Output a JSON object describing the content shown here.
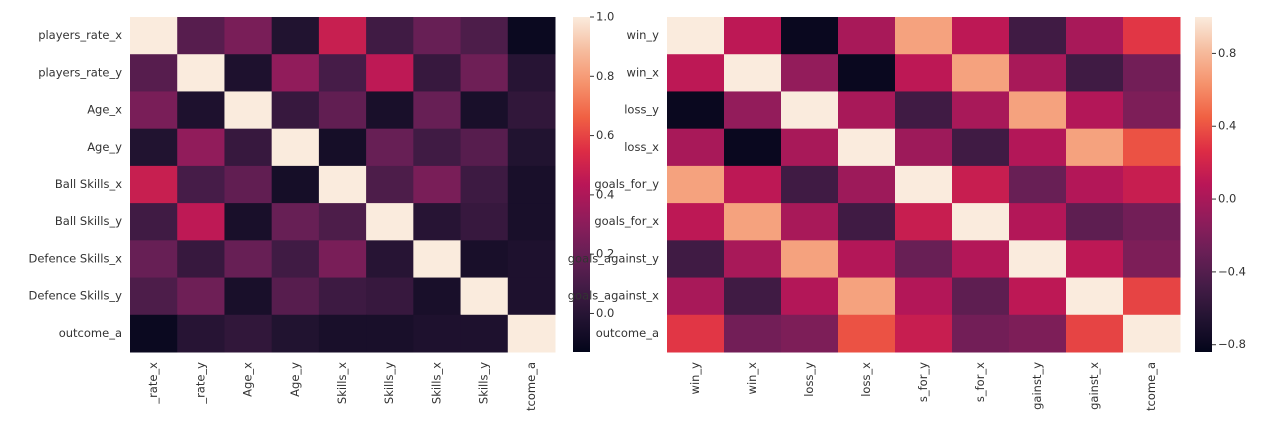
{
  "chart_data": [
    {
      "type": "heatmap",
      "colormap": "rocket",
      "y_categories": [
        "players_rate_x",
        "players_rate_y",
        "Age_x",
        "Age_y",
        "Ball Skills_x",
        "Ball Skills_y",
        "Defence Skills_x",
        "Defence Skills_y",
        "outcome_a"
      ],
      "x_categories": [
        "_rate_x",
        "_rate_y",
        "Age_x",
        "Age_y",
        "Skills_x",
        "Skills_y",
        "Skills_x",
        "Skills_y",
        "tcome_a"
      ],
      "values": [
        [
          1,
          0.15,
          0.25,
          -0.02,
          0.48,
          0.08,
          0.2,
          0.12,
          -0.1
        ],
        [
          0.15,
          1,
          -0.03,
          0.32,
          0.1,
          0.45,
          0.05,
          0.22,
          0.0
        ],
        [
          0.25,
          -0.03,
          1,
          0.05,
          0.18,
          -0.05,
          0.2,
          -0.05,
          0.03
        ],
        [
          -0.02,
          0.32,
          0.05,
          1,
          -0.06,
          0.2,
          0.08,
          0.15,
          -0.02
        ],
        [
          0.48,
          0.1,
          0.18,
          -0.06,
          1,
          0.12,
          0.25,
          0.07,
          -0.05
        ],
        [
          0.08,
          0.45,
          -0.05,
          0.2,
          0.12,
          1,
          0.0,
          0.05,
          -0.05
        ],
        [
          0.2,
          0.05,
          0.2,
          0.08,
          0.25,
          0.0,
          1,
          -0.05,
          -0.03
        ],
        [
          0.12,
          0.22,
          -0.05,
          0.15,
          0.07,
          0.05,
          -0.05,
          1,
          -0.03
        ],
        [
          -0.1,
          0.0,
          0.03,
          -0.02,
          -0.05,
          -0.05,
          -0.03,
          -0.03,
          1
        ]
      ],
      "clim": [
        -0.13,
        1.0
      ],
      "cticks": [
        {
          "value": 0,
          "label": "0.0"
        },
        0.2,
        0.4,
        0.6,
        0.8,
        {
          "value": 1,
          "label": "1.0"
        }
      ]
    },
    {
      "type": "heatmap",
      "colormap": "rocket",
      "y_categories": [
        "win_y",
        "win_x",
        "loss_y",
        "loss_x",
        "goals_for_y",
        "goals_for_x",
        "goals_against_y",
        "goals_against_x",
        "outcome_a"
      ],
      "x_categories": [
        "win_y",
        "win_x",
        "loss_y",
        "loss_x",
        "s_for_y",
        "s_for_x",
        "gainst_y",
        "gainst_x",
        "tcome_a"
      ],
      "values": [
        [
          1,
          0.1,
          -0.8,
          0.0,
          0.7,
          0.1,
          -0.5,
          0.0,
          0.3
        ],
        [
          0.1,
          1,
          -0.1,
          -0.8,
          0.1,
          0.7,
          0.0,
          -0.5,
          -0.25
        ],
        [
          -0.8,
          -0.1,
          1,
          0.0,
          -0.5,
          0.0,
          0.7,
          0.05,
          -0.2
        ],
        [
          0.0,
          -0.8,
          0.0,
          1,
          -0.05,
          -0.5,
          0.05,
          0.7,
          0.4
        ],
        [
          0.7,
          0.1,
          -0.5,
          -0.05,
          1,
          0.15,
          -0.3,
          0.05,
          0.15
        ],
        [
          0.1,
          0.7,
          0.0,
          -0.5,
          0.15,
          1,
          0.05,
          -0.35,
          -0.25
        ],
        [
          -0.5,
          0.0,
          0.7,
          0.05,
          -0.3,
          0.05,
          1,
          0.1,
          -0.2
        ],
        [
          0.0,
          -0.5,
          0.05,
          0.7,
          0.05,
          -0.35,
          0.1,
          1,
          0.35
        ],
        [
          0.3,
          -0.25,
          -0.2,
          0.4,
          0.15,
          -0.25,
          -0.2,
          0.35,
          1
        ]
      ],
      "clim": [
        -0.84,
        1.0
      ],
      "cticks": [
        {
          "value": -0.8,
          "label": "−0.8"
        },
        {
          "value": -0.4,
          "label": "−0.4"
        },
        {
          "value": 0,
          "label": "0.0"
        },
        0.4,
        0.8
      ]
    }
  ]
}
